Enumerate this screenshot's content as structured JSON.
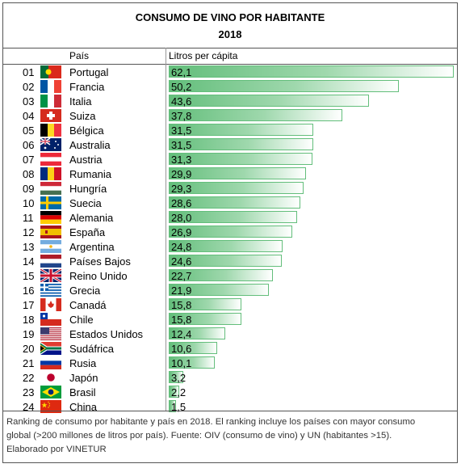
{
  "header": {
    "title": "CONSUMO DE VINO POR HABITANTE",
    "subtitle": "2018",
    "col_country": "País",
    "col_value": "Litros per cápita"
  },
  "chart_data": {
    "type": "bar",
    "title": "CONSUMO DE VINO POR HABITANTE",
    "subtitle": "2018",
    "xlabel": "Litros per cápita",
    "ylabel": "País",
    "xlim": [
      0,
      62.1
    ],
    "categories": [
      "Portugal",
      "Francia",
      "Italia",
      "Suiza",
      "Bélgica",
      "Australia",
      "Austria",
      "Rumania",
      "Hungría",
      "Suecia",
      "Alemania",
      "España",
      "Argentina",
      "Países Bajos",
      "Reino Unido",
      "Grecia",
      "Canadá",
      "Chile",
      "Estados Unidos",
      "Sudáfrica",
      "Rusia",
      "Japón",
      "Brasil",
      "China"
    ],
    "ranks": [
      "01",
      "02",
      "03",
      "04",
      "05",
      "06",
      "07",
      "08",
      "09",
      "10",
      "11",
      "12",
      "13",
      "14",
      "15",
      "16",
      "17",
      "18",
      "19",
      "20",
      "21",
      "22",
      "23",
      "24"
    ],
    "values": [
      62.1,
      50.2,
      43.6,
      37.8,
      31.5,
      31.5,
      31.3,
      29.9,
      29.3,
      28.6,
      28.0,
      26.9,
      24.8,
      24.6,
      22.7,
      21.9,
      15.8,
      15.8,
      12.4,
      10.6,
      10.1,
      3.2,
      2.2,
      1.5
    ],
    "value_labels": [
      "62,1",
      "50,2",
      "43,6",
      "37,8",
      "31,5",
      "31,5",
      "31,3",
      "29,9",
      "29,3",
      "28,6",
      "28,0",
      "26,9",
      "24,8",
      "24,6",
      "22,7",
      "21,9",
      "15,8",
      "15,8",
      "12,4",
      "10,6",
      "10,1",
      "3,2",
      "2,2",
      "1,5"
    ],
    "bar_color": "#63be7b"
  },
  "flags": [
    "portugal-flag-icon",
    "france-flag-icon",
    "italy-flag-icon",
    "switzerland-flag-icon",
    "belgium-flag-icon",
    "australia-flag-icon",
    "austria-flag-icon",
    "romania-flag-icon",
    "hungary-flag-icon",
    "sweden-flag-icon",
    "germany-flag-icon",
    "spain-flag-icon",
    "argentina-flag-icon",
    "netherlands-flag-icon",
    "uk-flag-icon",
    "greece-flag-icon",
    "canada-flag-icon",
    "chile-flag-icon",
    "usa-flag-icon",
    "south-africa-flag-icon",
    "russia-flag-icon",
    "japan-flag-icon",
    "brazil-flag-icon",
    "china-flag-icon"
  ],
  "footer": {
    "line1": "Ranking de consumo por habitante y país en 2018. El ranking incluye los países con mayor consumo",
    "line2": "global (>200 millones de litros por país). Fuente: OIV (consumo de vino) y UN (habitantes >15).",
    "line3": "Elaborado por VINETUR"
  }
}
